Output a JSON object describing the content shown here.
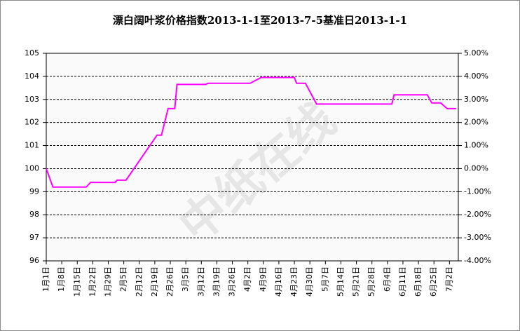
{
  "chart_data": {
    "type": "line",
    "title": "漂白阔叶浆价格指数2013-1-1至2013-7-5基准日2013-1-1",
    "watermark": "中纸在线",
    "x": [
      0,
      3,
      18,
      20,
      31,
      32,
      36,
      50,
      52,
      55,
      58,
      59,
      72,
      73,
      92,
      97,
      112,
      113,
      117,
      122,
      156,
      157,
      172,
      174,
      178,
      181,
      185
    ],
    "series": [
      {
        "name": "漂白阔叶浆价格指数",
        "color": "#ff00ff",
        "values": [
          100,
          99.2,
          99.2,
          99.4,
          99.4,
          99.5,
          99.5,
          101.45,
          101.45,
          102.6,
          102.6,
          103.65,
          103.65,
          103.7,
          103.7,
          103.95,
          103.95,
          103.7,
          103.7,
          102.8,
          102.8,
          103.2,
          103.2,
          102.85,
          102.85,
          102.6,
          102.6
        ]
      }
    ],
    "xlim": [
      0,
      186
    ],
    "xticks": [
      {
        "value": 0,
        "label": "1月1日"
      },
      {
        "value": 7,
        "label": "1月8日"
      },
      {
        "value": 14,
        "label": "1月15日"
      },
      {
        "value": 21,
        "label": "1月22日"
      },
      {
        "value": 28,
        "label": "1月29日"
      },
      {
        "value": 35,
        "label": "2月5日"
      },
      {
        "value": 42,
        "label": "2月12日"
      },
      {
        "value": 49,
        "label": "2月19日"
      },
      {
        "value": 56,
        "label": "2月26日"
      },
      {
        "value": 63,
        "label": "3月5日"
      },
      {
        "value": 70,
        "label": "3月12日"
      },
      {
        "value": 77,
        "label": "3月19日"
      },
      {
        "value": 84,
        "label": "3月26日"
      },
      {
        "value": 91,
        "label": "4月2日"
      },
      {
        "value": 98,
        "label": "4月9日"
      },
      {
        "value": 105,
        "label": "4月16日"
      },
      {
        "value": 112,
        "label": "4月23日"
      },
      {
        "value": 119,
        "label": "4月30日"
      },
      {
        "value": 126,
        "label": "5月7日"
      },
      {
        "value": 133,
        "label": "5月14日"
      },
      {
        "value": 140,
        "label": "5月21日"
      },
      {
        "value": 147,
        "label": "5月28日"
      },
      {
        "value": 154,
        "label": "6月4日"
      },
      {
        "value": 161,
        "label": "6月11日"
      },
      {
        "value": 168,
        "label": "6月18日"
      },
      {
        "value": 175,
        "label": "6月25日"
      },
      {
        "value": 182,
        "label": "7月2日"
      }
    ],
    "ylim": [
      96,
      105
    ],
    "yticks": [
      96,
      97,
      98,
      99,
      100,
      101,
      102,
      103,
      104,
      105
    ],
    "y2lim": [
      -4,
      5
    ],
    "y2ticks": [
      {
        "value": -4,
        "label": "-4.00%"
      },
      {
        "value": -3,
        "label": "-3.00%"
      },
      {
        "value": -2,
        "label": "-2.00%"
      },
      {
        "value": -1,
        "label": "-1.00%"
      },
      {
        "value": 0,
        "label": "0.00%"
      },
      {
        "value": 1,
        "label": "1.00%"
      },
      {
        "value": 2,
        "label": "2.00%"
      },
      {
        "value": 3,
        "label": "3.00%"
      },
      {
        "value": 4,
        "label": "4.00%"
      },
      {
        "value": 5,
        "label": "5.00%"
      }
    ],
    "grid": true
  }
}
